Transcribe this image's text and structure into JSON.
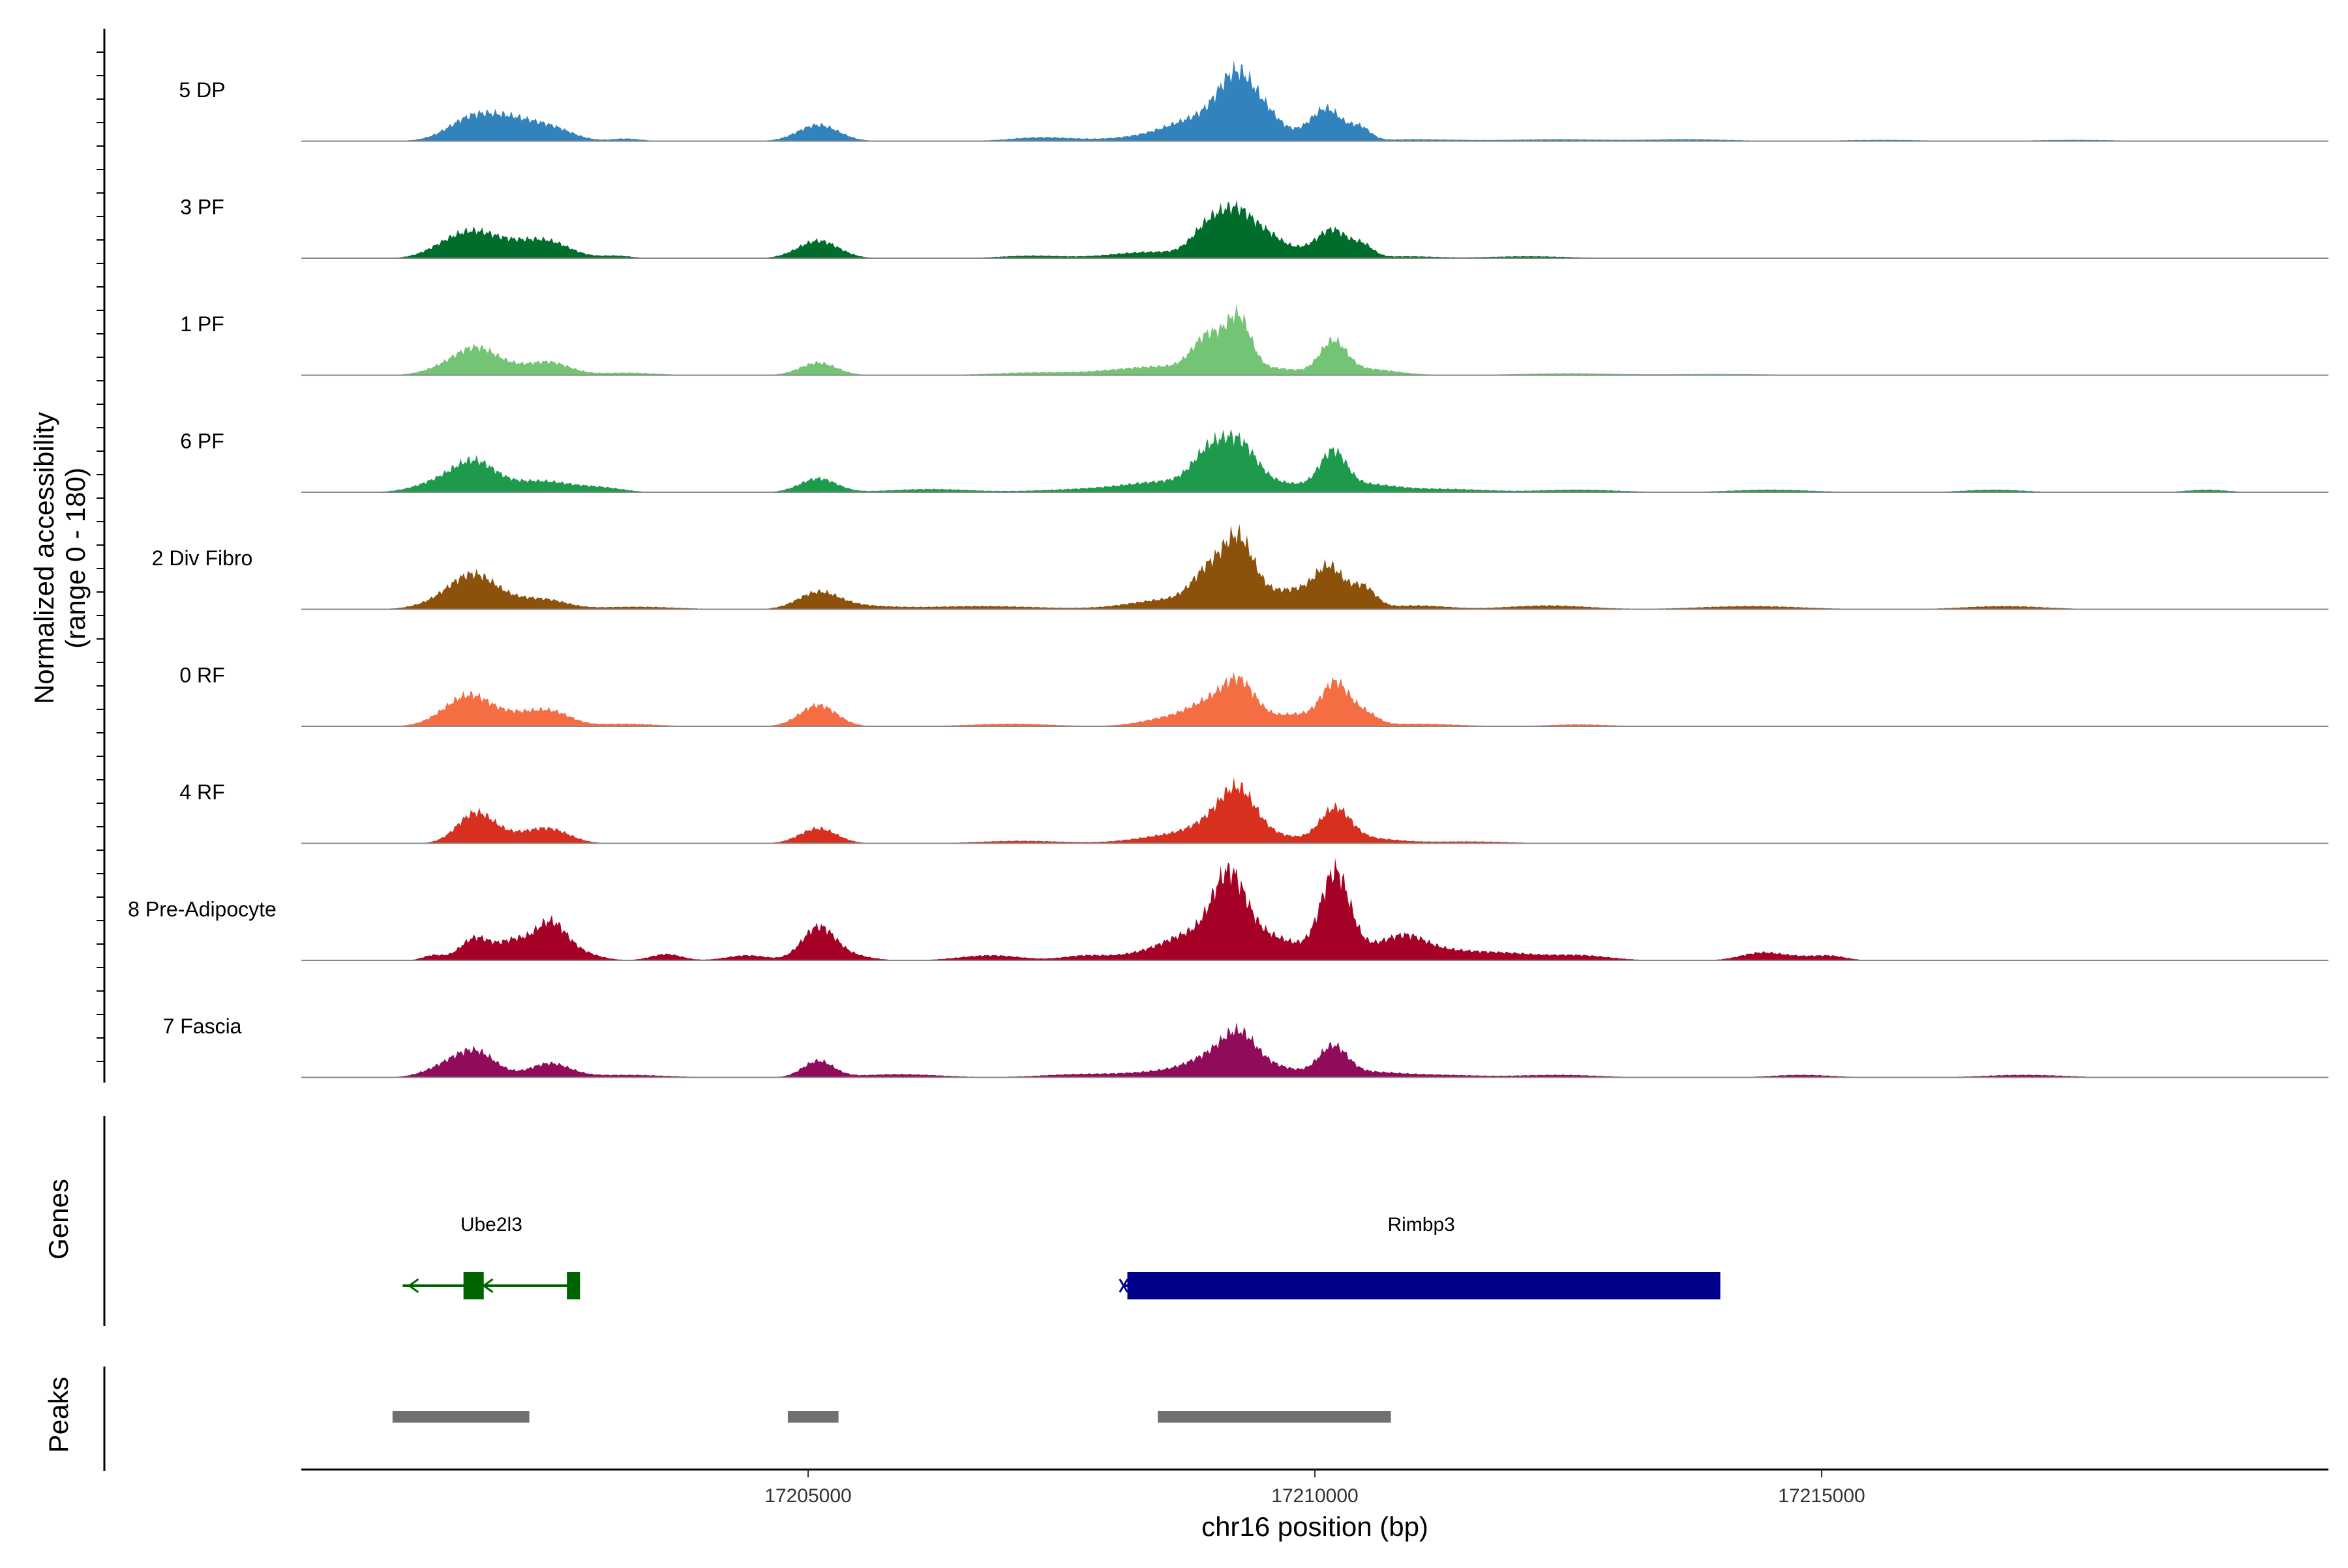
{
  "chart_data": {
    "type": "area",
    "chromosome": "chr16",
    "xlabel": "chr16 position (bp)",
    "ylabel": "Normalized accessibility",
    "ylabel_range": "(range 0 - 180)",
    "y_range": [
      0,
      180
    ],
    "x_range": [
      17200000,
      17220000
    ],
    "x_ticks": [
      17205000,
      17210000,
      17215000
    ],
    "x_tick_labels": [
      "17205000",
      "17210000",
      "17215000"
    ],
    "tracks": [
      {
        "name": "5 DP",
        "color": "#3182BD",
        "peaks": [
          [
            17201720,
            40,
            250
          ],
          [
            17202050,
            12,
            200
          ],
          [
            17202450,
            22,
            220
          ],
          [
            17202150,
            10,
            180
          ],
          [
            17203200,
            4,
            150
          ],
          [
            17205100,
            26,
            200
          ],
          [
            17207300,
            6,
            300
          ],
          [
            17208700,
            12,
            500
          ],
          [
            17208900,
            26,
            300
          ],
          [
            17209200,
            66,
            170
          ],
          [
            17209350,
            35,
            160
          ],
          [
            17209550,
            18,
            120
          ],
          [
            17209750,
            12,
            200
          ],
          [
            17210120,
            50,
            150
          ],
          [
            17210450,
            20,
            100
          ],
          [
            17211000,
            3,
            400
          ],
          [
            17212400,
            3,
            500
          ],
          [
            17213700,
            3,
            400
          ],
          [
            17215600,
            2,
            400
          ],
          [
            17217500,
            2,
            400
          ]
        ]
      },
      {
        "name": "3 PF",
        "color": "#006D2C",
        "peaks": [
          [
            17201720,
            40,
            250
          ],
          [
            17201400,
            10,
            200
          ],
          [
            17202450,
            24,
            220
          ],
          [
            17202150,
            12,
            200
          ],
          [
            17203100,
            4,
            150
          ],
          [
            17205100,
            28,
            200
          ],
          [
            17207200,
            4,
            300
          ],
          [
            17208400,
            10,
            400
          ],
          [
            17208950,
            45,
            160
          ],
          [
            17209250,
            70,
            170
          ],
          [
            17209550,
            22,
            130
          ],
          [
            17209800,
            14,
            200
          ],
          [
            17210180,
            44,
            150
          ],
          [
            17210480,
            18,
            100
          ],
          [
            17210900,
            3,
            300
          ],
          [
            17212100,
            3,
            400
          ]
        ]
      },
      {
        "name": "1 PF",
        "color": "#74C476",
        "peaks": [
          [
            17201720,
            40,
            200
          ],
          [
            17201400,
            10,
            200
          ],
          [
            17202050,
            10,
            200
          ],
          [
            17202450,
            20,
            200
          ],
          [
            17203200,
            4,
            300
          ],
          [
            17205100,
            20,
            180
          ],
          [
            17207200,
            4,
            400
          ],
          [
            17208500,
            14,
            500
          ],
          [
            17208950,
            55,
            150
          ],
          [
            17209250,
            82,
            120
          ],
          [
            17209600,
            10,
            250
          ],
          [
            17210180,
            50,
            130
          ],
          [
            17210500,
            10,
            300
          ],
          [
            17212500,
            3,
            500
          ],
          [
            17214000,
            2,
            500
          ]
        ]
      },
      {
        "name": "6 PF",
        "color": "#1D9A4C",
        "peaks": [
          [
            17201720,
            40,
            200
          ],
          [
            17201400,
            18,
            250
          ],
          [
            17202350,
            18,
            350
          ],
          [
            17203000,
            5,
            200
          ],
          [
            17205100,
            22,
            180
          ],
          [
            17206200,
            5,
            400
          ],
          [
            17207800,
            5,
            500
          ],
          [
            17208600,
            16,
            400
          ],
          [
            17208950,
            50,
            160
          ],
          [
            17209250,
            68,
            170
          ],
          [
            17209650,
            14,
            300
          ],
          [
            17210180,
            58,
            130
          ],
          [
            17210500,
            12,
            300
          ],
          [
            17211300,
            5,
            400
          ],
          [
            17212600,
            4,
            400
          ],
          [
            17214500,
            4,
            400
          ],
          [
            17216700,
            4,
            300
          ],
          [
            17218800,
            4,
            200
          ]
        ]
      },
      {
        "name": "2 Div Fibro",
        "color": "#8C510A",
        "peaks": [
          [
            17201720,
            48,
            220
          ],
          [
            17201450,
            14,
            250
          ],
          [
            17202150,
            10,
            200
          ],
          [
            17202450,
            12,
            200
          ],
          [
            17203300,
            4,
            400
          ],
          [
            17205100,
            26,
            200
          ],
          [
            17205500,
            5,
            300
          ],
          [
            17206700,
            5,
            600
          ],
          [
            17208600,
            16,
            400
          ],
          [
            17208950,
            50,
            160
          ],
          [
            17209250,
            100,
            150
          ],
          [
            17209650,
            22,
            250
          ],
          [
            17209900,
            14,
            200
          ],
          [
            17210150,
            60,
            140
          ],
          [
            17210480,
            34,
            120
          ],
          [
            17211000,
            6,
            300
          ],
          [
            17212300,
            6,
            400
          ],
          [
            17214300,
            5,
            500
          ],
          [
            17216800,
            5,
            400
          ]
        ]
      },
      {
        "name": "0 RF",
        "color": "#F46D43",
        "peaks": [
          [
            17201700,
            42,
            200
          ],
          [
            17201450,
            15,
            200
          ],
          [
            17202100,
            14,
            180
          ],
          [
            17202450,
            24,
            200
          ],
          [
            17203200,
            4,
            300
          ],
          [
            17205100,
            34,
            180
          ],
          [
            17207000,
            4,
            400
          ],
          [
            17208650,
            16,
            300
          ],
          [
            17208950,
            26,
            180
          ],
          [
            17209250,
            66,
            160
          ],
          [
            17209600,
            12,
            200
          ],
          [
            17209850,
            12,
            150
          ],
          [
            17210200,
            70,
            140
          ],
          [
            17210500,
            18,
            120
          ],
          [
            17211000,
            4,
            400
          ],
          [
            17212600,
            3,
            300
          ]
        ]
      },
      {
        "name": "4 RF",
        "color": "#D7301F",
        "peaks": [
          [
            17201720,
            48,
            180
          ],
          [
            17202450,
            22,
            200
          ],
          [
            17202100,
            10,
            200
          ],
          [
            17205100,
            24,
            180
          ],
          [
            17207100,
            4,
            400
          ],
          [
            17208700,
            15,
            400
          ],
          [
            17209000,
            22,
            200
          ],
          [
            17209250,
            70,
            170
          ],
          [
            17209600,
            12,
            250
          ],
          [
            17210200,
            52,
            150
          ],
          [
            17210500,
            8,
            300
          ],
          [
            17211500,
            3,
            400
          ]
        ]
      },
      {
        "name": "8 Pre-Adipocyte",
        "color": "#A50026",
        "peaks": [
          [
            17201720,
            36,
            150
          ],
          [
            17201300,
            8,
            100
          ],
          [
            17202100,
            30,
            150
          ],
          [
            17202450,
            55,
            150
          ],
          [
            17202700,
            14,
            200
          ],
          [
            17203600,
            10,
            150
          ],
          [
            17204400,
            8,
            200
          ],
          [
            17205100,
            52,
            160
          ],
          [
            17205400,
            8,
            200
          ],
          [
            17206800,
            8,
            300
          ],
          [
            17207700,
            6,
            200
          ],
          [
            17208500,
            14,
            400
          ],
          [
            17208800,
            30,
            250
          ],
          [
            17209150,
            110,
            160
          ],
          [
            17209400,
            26,
            250
          ],
          [
            17209700,
            20,
            300
          ],
          [
            17210200,
            128,
            140
          ],
          [
            17210500,
            18,
            300
          ],
          [
            17210900,
            28,
            200
          ],
          [
            17211300,
            14,
            300
          ],
          [
            17211900,
            10,
            300
          ],
          [
            17212600,
            8,
            300
          ],
          [
            17214400,
            12,
            200
          ],
          [
            17214800,
            5,
            200
          ],
          [
            17215100,
            6,
            150
          ]
        ]
      },
      {
        "name": "7 Fascia",
        "color": "#900C5A",
        "peaks": [
          [
            17201720,
            40,
            200
          ],
          [
            17201400,
            14,
            200
          ],
          [
            17202450,
            22,
            200
          ],
          [
            17203200,
            4,
            400
          ],
          [
            17205100,
            26,
            150
          ],
          [
            17205900,
            5,
            400
          ],
          [
            17207700,
            5,
            400
          ],
          [
            17208700,
            12,
            400
          ],
          [
            17208950,
            20,
            200
          ],
          [
            17209250,
            58,
            170
          ],
          [
            17209600,
            16,
            250
          ],
          [
            17210180,
            46,
            140
          ],
          [
            17210500,
            8,
            300
          ],
          [
            17211200,
            4,
            400
          ],
          [
            17212400,
            4,
            400
          ],
          [
            17214800,
            4,
            300
          ],
          [
            17217000,
            4,
            400
          ]
        ]
      }
    ],
    "genes": [
      {
        "name": "Ube2l3",
        "color": "#006400",
        "strand": "-",
        "start": 17201000,
        "end": 17202750,
        "exons": [
          [
            17201600,
            17201800
          ],
          [
            17202620,
            17202750
          ]
        ]
      },
      {
        "name": "Rimbp3",
        "color": "#00008B",
        "strand": "-",
        "start": 17208100,
        "end": 17214000,
        "exons": [
          [
            17208150,
            17214000
          ]
        ]
      }
    ],
    "peaks_track": {
      "color": "#707070",
      "regions": [
        [
          17200900,
          17202250
        ],
        [
          17204800,
          17205300
        ],
        [
          17208450,
          17210750
        ]
      ]
    },
    "panel_labels": {
      "genes": "Genes",
      "peaks": "Peaks"
    }
  }
}
